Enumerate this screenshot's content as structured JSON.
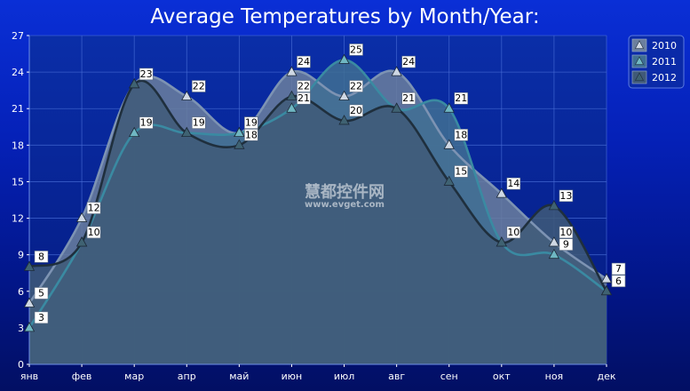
{
  "chart_data": {
    "type": "area",
    "title": "Average Temperatures by Month/Year:",
    "categories": [
      "янв",
      "фев",
      "мар",
      "апр",
      "май",
      "июн",
      "июл",
      "авг",
      "сен",
      "окт",
      "ноя",
      "дек"
    ],
    "ylim": [
      0,
      27
    ],
    "yticks": [
      0,
      3,
      6,
      9,
      12,
      15,
      18,
      21,
      24,
      27
    ],
    "series": [
      {
        "name": "2010",
        "values": [
          5,
          12,
          23,
          22,
          19,
          24,
          22,
          24,
          18,
          14,
          10,
          7
        ],
        "fill": "#6b7f9e",
        "line": "#7d93b3",
        "marker": "#cfd8e4"
      },
      {
        "name": "2011",
        "values": [
          3,
          10,
          19,
          19,
          19,
          21,
          25,
          21,
          21,
          10,
          9,
          6
        ],
        "fill": "#3f6f93",
        "line": "#3a8aa2",
        "marker": "#6fb7c2"
      },
      {
        "name": "2012",
        "values": [
          8,
          10,
          23,
          19,
          18,
          22,
          20,
          21,
          15,
          10,
          13,
          6
        ],
        "fill": "#405a78",
        "line": "#1f2f3d",
        "marker": "#3f6272"
      }
    ],
    "legend_position": "top-right",
    "grid": true
  },
  "watermark": {
    "line1": "慧都控件网",
    "line2": "www.evget.com"
  }
}
